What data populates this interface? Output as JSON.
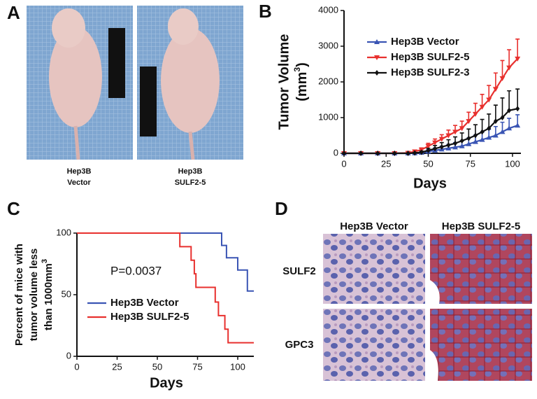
{
  "panels": {
    "A": {
      "label": "A",
      "captions": [
        [
          "Hep3B",
          "Vector"
        ],
        [
          "Hep3B",
          "SULF2-5"
        ]
      ]
    },
    "D": {
      "label": "D",
      "columns": [
        "Hep3B Vector",
        "Hep3B SULF2-5"
      ],
      "rows": [
        "SULF2",
        "GPC3"
      ]
    }
  },
  "chart_data": [
    {
      "panel_label": "B",
      "type": "line",
      "xlabel": "Days",
      "ylabel": {
        "line1": "Tumor Volume",
        "unit": "(mm",
        "sup": "3",
        "close": ")"
      },
      "xlim": [
        0,
        105
      ],
      "xticks": [
        0,
        25,
        50,
        75,
        100
      ],
      "ylim": [
        0,
        4000
      ],
      "yticks": [
        0,
        1000,
        2000,
        3000,
        4000
      ],
      "x": [
        0,
        10,
        20,
        30,
        38,
        42,
        46,
        50,
        54,
        58,
        62,
        66,
        70,
        74,
        78,
        82,
        86,
        90,
        94,
        98,
        103
      ],
      "series": [
        {
          "name": "Hep3B Vector",
          "color": "#3a55b4",
          "marker": "triangle-up",
          "values": [
            0,
            0,
            0,
            0,
            0,
            5,
            20,
            50,
            80,
            110,
            140,
            170,
            200,
            260,
            320,
            380,
            440,
            500,
            600,
            700,
            780
          ],
          "errors": [
            0,
            0,
            0,
            0,
            0,
            5,
            20,
            50,
            70,
            90,
            110,
            130,
            150,
            170,
            190,
            210,
            230,
            250,
            270,
            280,
            300
          ]
        },
        {
          "name": "Hep3B SULF2-5",
          "color": "#e8302e",
          "marker": "triangle-down",
          "values": [
            0,
            0,
            0,
            0,
            10,
            50,
            100,
            200,
            300,
            400,
            500,
            600,
            700,
            900,
            1100,
            1300,
            1500,
            1800,
            2100,
            2400,
            2650
          ],
          "errors": [
            0,
            0,
            0,
            0,
            10,
            30,
            50,
            80,
            100,
            120,
            150,
            180,
            200,
            250,
            300,
            350,
            400,
            450,
            500,
            500,
            550
          ]
        },
        {
          "name": "Hep3B SULF2-3",
          "color": "#111111",
          "marker": "diamond",
          "values": [
            0,
            0,
            0,
            0,
            0,
            10,
            30,
            80,
            130,
            180,
            230,
            280,
            350,
            420,
            500,
            600,
            700,
            900,
            1000,
            1200,
            1250
          ],
          "errors": [
            0,
            0,
            0,
            0,
            0,
            10,
            30,
            60,
            90,
            120,
            150,
            180,
            220,
            260,
            300,
            350,
            400,
            450,
            550,
            550,
            550
          ]
        }
      ]
    },
    {
      "panel_label": "C",
      "type": "step",
      "xlabel": "Days",
      "ylabel": {
        "lines": [
          "Percent of mice with",
          "tumor volume less",
          "than 1000mm"
        ],
        "sup": "3"
      },
      "annotation": "P=0.0037",
      "xlim": [
        0,
        110
      ],
      "xticks": [
        0,
        25,
        50,
        75,
        100
      ],
      "ylim": [
        0,
        100
      ],
      "yticks": [
        0,
        50,
        100
      ],
      "series": [
        {
          "name": "Hep3B Vector",
          "color": "#3a55b4",
          "x": [
            0,
            90,
            93,
            100,
            106
          ],
          "values": [
            100,
            90,
            80,
            70,
            53
          ]
        },
        {
          "name": "Hep3B SULF2-5",
          "color": "#e8302e",
          "x": [
            0,
            64,
            71,
            73,
            74,
            86,
            88,
            92,
            94
          ],
          "values": [
            100,
            89,
            78,
            67,
            56,
            44,
            33,
            22,
            11
          ]
        }
      ]
    }
  ]
}
